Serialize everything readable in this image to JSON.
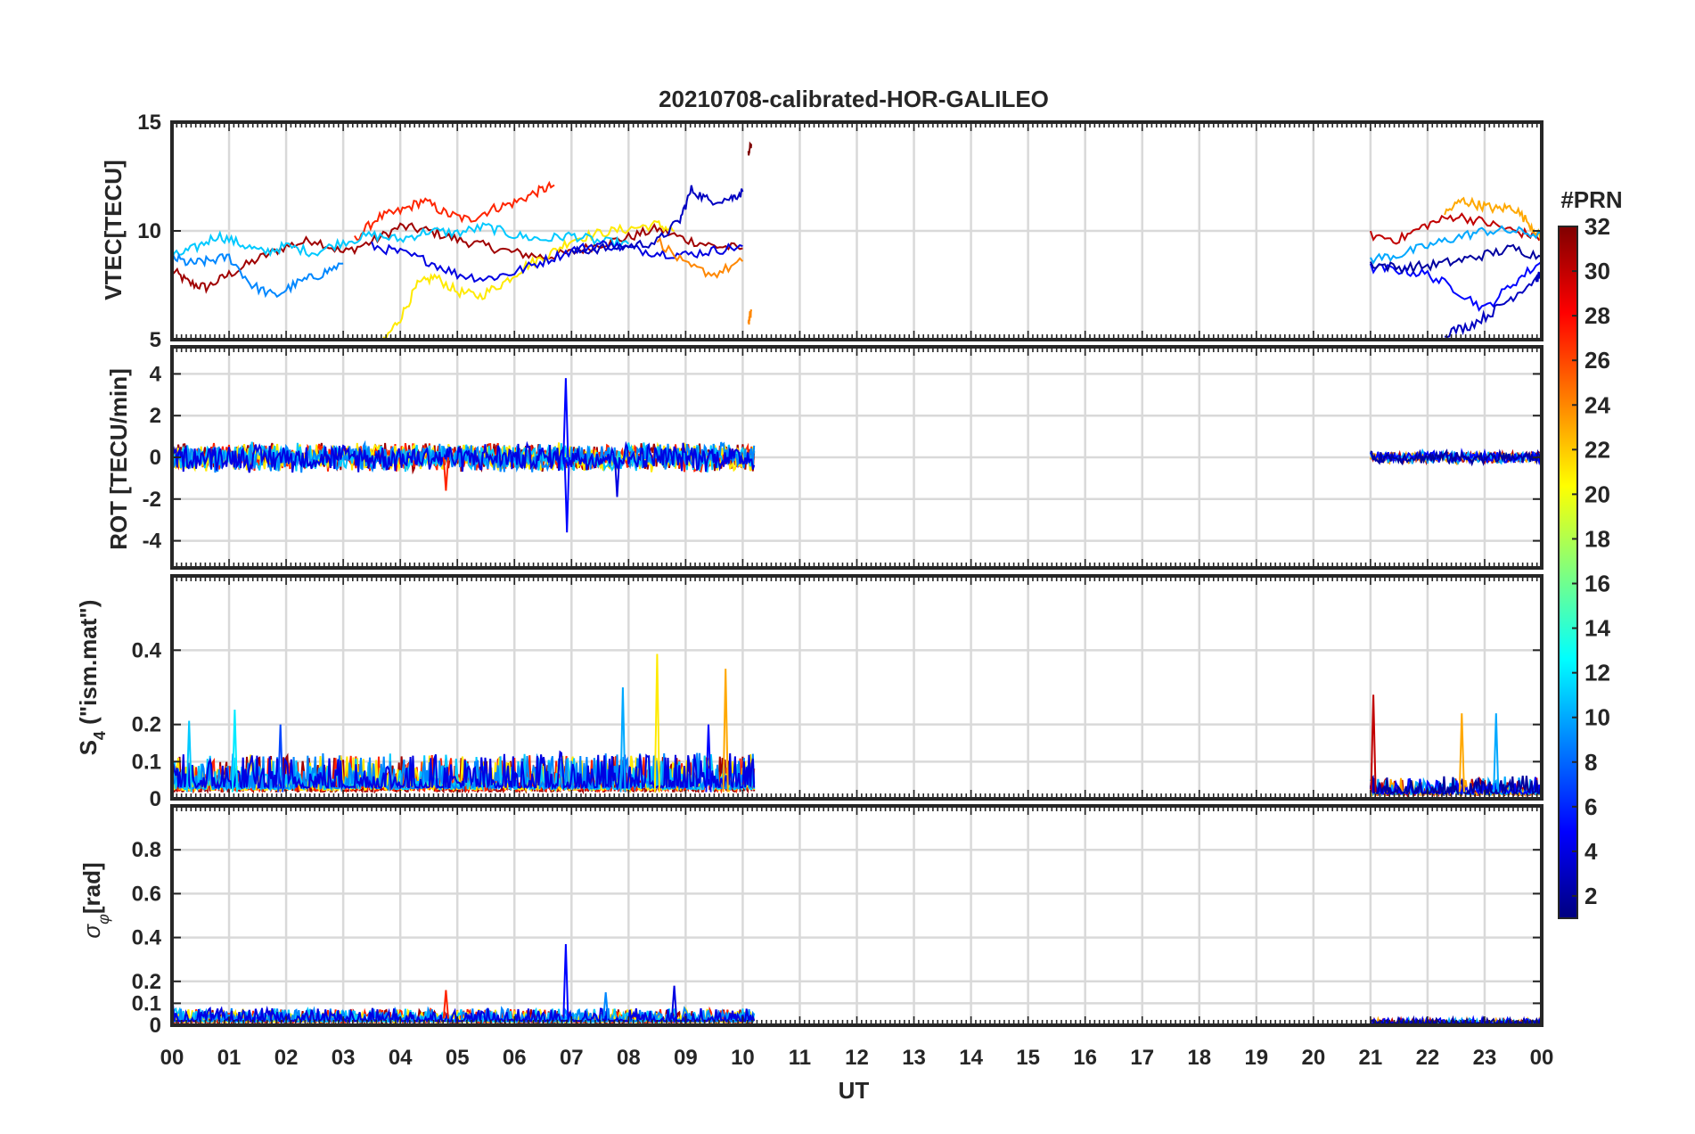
{
  "figure": {
    "title": "20210708-calibrated-HOR-GALILEO",
    "xlabel": "UT",
    "x_ticks": [
      "00",
      "01",
      "02",
      "03",
      "04",
      "05",
      "06",
      "07",
      "08",
      "09",
      "10",
      "11",
      "12",
      "13",
      "14",
      "15",
      "16",
      "17",
      "18",
      "19",
      "20",
      "21",
      "22",
      "23",
      "00"
    ]
  },
  "colorbar": {
    "title": "#PRN",
    "ticks": [
      "32",
      "30",
      "28",
      "26",
      "24",
      "22",
      "20",
      "18",
      "16",
      "14",
      "12",
      "10",
      "8",
      "6",
      "4",
      "2"
    ],
    "range": [
      1,
      32
    ],
    "colormap": "jet",
    "stops": [
      "#00007f",
      "#0000ff",
      "#007fff",
      "#00ffff",
      "#7fff7f",
      "#ffff00",
      "#ff7f00",
      "#ff0000",
      "#7f0000"
    ]
  },
  "chart_data": [
    {
      "type": "line",
      "panel": "VTEC",
      "ylabel": "VTEC[TECU]",
      "ylim": [
        5,
        15
      ],
      "y_ticks": [
        "15",
        "10",
        "5"
      ],
      "y_tick_values": [
        15,
        10,
        5
      ],
      "xlim": [
        0,
        24
      ],
      "grid": true,
      "series": [
        {
          "prn": 31,
          "x": [
            0,
            0.3,
            0.6,
            1.0,
            1.5,
            2.0,
            2.5,
            3.0,
            3.5,
            4.0,
            4.5,
            5.0,
            5.5,
            6.0,
            6.5,
            7.0,
            7.5,
            8.0,
            8.5,
            9.0,
            9.5,
            10.0
          ],
          "y": [
            8.2,
            7.6,
            7.4,
            8.0,
            8.7,
            9.3,
            9.6,
            9.0,
            9.5,
            10.2,
            10.0,
            9.6,
            9.3,
            9.0,
            8.8,
            9.0,
            9.4,
            9.7,
            10.1,
            9.6,
            9.3,
            9.2
          ]
        },
        {
          "prn": 27,
          "x": [
            3.2,
            3.6,
            4.0,
            4.4,
            4.8,
            5.2,
            5.6,
            6.0,
            6.4,
            6.7
          ],
          "y": [
            9.6,
            10.6,
            10.9,
            11.4,
            10.8,
            10.5,
            11.0,
            11.3,
            11.8,
            12.1
          ]
        },
        {
          "prn": 21,
          "x": [
            3.7,
            4.0,
            4.3,
            4.6,
            5.0,
            5.4,
            5.8,
            6.2,
            6.6,
            7.0,
            7.5,
            8.0,
            8.5,
            8.8
          ],
          "y": [
            4.9,
            6.0,
            7.5,
            7.9,
            7.2,
            7.0,
            7.6,
            8.4,
            8.9,
            9.6,
            9.9,
            10.1,
            10.3,
            10.0
          ]
        },
        {
          "prn": 11,
          "x": [
            0,
            0.4,
            0.8,
            1.2,
            1.6,
            2.0,
            2.5,
            3.0,
            3.5,
            4.0,
            4.5,
            5.0,
            5.5,
            6.0,
            6.5,
            7.0,
            7.5,
            8.0
          ],
          "y": [
            8.8,
            9.2,
            9.8,
            9.4,
            9.0,
            9.3,
            9.0,
            9.5,
            9.8,
            9.6,
            10.0,
            9.9,
            10.2,
            9.8,
            9.6,
            9.8,
            9.5,
            9.4
          ]
        },
        {
          "prn": 9,
          "x": [
            0,
            0.3,
            0.6,
            1.0,
            1.4,
            1.8,
            2.2,
            2.6,
            3.0
          ],
          "y": [
            8.8,
            8.5,
            8.6,
            8.8,
            7.5,
            7.0,
            7.6,
            8.0,
            8.5
          ]
        },
        {
          "prn": 4,
          "x": [
            3.5,
            4.0,
            4.5,
            5.0,
            5.5,
            6.0,
            6.5,
            7.0,
            7.5,
            8.0,
            8.5,
            9.0,
            9.5,
            10.0
          ],
          "y": [
            9.3,
            9.0,
            8.6,
            8.0,
            7.8,
            8.1,
            8.6,
            9.1,
            9.4,
            9.2,
            9.0,
            8.9,
            9.1,
            9.3
          ]
        },
        {
          "prn": 3,
          "x": [
            7.0,
            7.5,
            8.0,
            8.5,
            8.9,
            9.1,
            9.4,
            9.8,
            10.0
          ],
          "y": [
            9.0,
            9.2,
            9.3,
            9.5,
            10.5,
            11.9,
            11.4,
            11.5,
            11.8
          ]
        },
        {
          "prn": 24,
          "x": [
            8.5,
            9.0,
            9.5,
            10.0
          ],
          "y": [
            9.6,
            8.4,
            8.0,
            8.6
          ]
        },
        {
          "prn": 32,
          "x": [
            10.1,
            10.15
          ],
          "y": [
            13.5,
            14.0
          ]
        },
        {
          "prn": 24,
          "x": [
            10.1,
            10.15
          ],
          "y": [
            5.8,
            6.3
          ]
        },
        {
          "prn": 30,
          "x": [
            21.0,
            21.5,
            22.0,
            22.5,
            23.0,
            23.5,
            24.0
          ],
          "y": [
            9.8,
            9.6,
            10.3,
            10.7,
            10.4,
            10.0,
            9.7
          ]
        },
        {
          "prn": 23,
          "x": [
            22.3,
            22.6,
            22.9,
            23.2,
            23.5,
            23.8,
            24.0
          ],
          "y": [
            10.8,
            11.4,
            11.2,
            11.0,
            11.1,
            10.3,
            9.6
          ]
        },
        {
          "prn": 10,
          "x": [
            21.0,
            21.5,
            22.0,
            22.5,
            23.0,
            23.5,
            24.0
          ],
          "y": [
            8.7,
            8.9,
            9.3,
            9.7,
            10.0,
            10.0,
            9.8
          ]
        },
        {
          "prn": 5,
          "x": [
            21.0,
            21.5,
            22.0,
            22.5,
            23.0,
            23.5,
            24.0
          ],
          "y": [
            8.3,
            8.2,
            8.0,
            7.3,
            6.4,
            7.6,
            8.6
          ]
        },
        {
          "prn": 2,
          "x": [
            21.0,
            21.5,
            22.0,
            22.5,
            23.0,
            23.5,
            24.0
          ],
          "y": [
            8.5,
            8.3,
            8.4,
            8.6,
            8.9,
            9.2,
            8.8
          ]
        },
        {
          "prn": 3,
          "x": [
            22.3,
            22.7,
            23.1,
            23.5,
            23.9,
            24.0
          ],
          "y": [
            5.3,
            5.6,
            6.2,
            7.0,
            7.8,
            8.0
          ]
        }
      ]
    },
    {
      "type": "line",
      "panel": "ROT",
      "ylabel": "ROT [TECU/min]",
      "ylim": [
        -5.3,
        5.3
      ],
      "y_ticks": [
        "4",
        "2",
        "0",
        "-2",
        "-4"
      ],
      "y_tick_values": [
        4,
        2,
        0,
        -2,
        -4
      ],
      "xlim": [
        0,
        24
      ],
      "grid": true,
      "noise_segments": [
        {
          "x_start": 0,
          "x_end": 10.2,
          "amplitude": 0.7,
          "prns": [
            31,
            27,
            21,
            11,
            9,
            4
          ]
        },
        {
          "x_start": 21,
          "x_end": 24,
          "amplitude": 0.3,
          "prns": [
            30,
            23,
            10,
            5,
            2
          ]
        }
      ],
      "spikes": [
        {
          "prn": 5,
          "x": 6.9,
          "y": 3.8
        },
        {
          "prn": 5,
          "x": 6.92,
          "y": -3.6
        },
        {
          "prn": 4,
          "x": 7.8,
          "y": -1.9
        },
        {
          "prn": 27,
          "x": 4.8,
          "y": -1.6
        }
      ]
    },
    {
      "type": "line",
      "panel": "S4",
      "ylabel": "S4 (\"ism.mat\")",
      "ylim": [
        0,
        0.6
      ],
      "y_ticks": [
        "0.4",
        "0.2",
        "0.1",
        "0"
      ],
      "y_tick_values": [
        0.4,
        0.2,
        0.1,
        0
      ],
      "xlim": [
        0,
        24
      ],
      "grid": true,
      "noise_segments": [
        {
          "x_start": 0,
          "x_end": 10.2,
          "amplitude": 0.08,
          "prns": [
            31,
            27,
            21,
            11,
            9,
            4
          ]
        },
        {
          "x_start": 21,
          "x_end": 24,
          "amplitude": 0.04,
          "prns": [
            30,
            23,
            10,
            5,
            2
          ]
        }
      ],
      "spikes": [
        {
          "prn": 11,
          "x": 0.3,
          "y": 0.21
        },
        {
          "prn": 12,
          "x": 1.1,
          "y": 0.24
        },
        {
          "prn": 7,
          "x": 1.9,
          "y": 0.2
        },
        {
          "prn": 10,
          "x": 7.9,
          "y": 0.3
        },
        {
          "prn": 21,
          "x": 8.5,
          "y": 0.39
        },
        {
          "prn": 23,
          "x": 9.7,
          "y": 0.35
        },
        {
          "prn": 5,
          "x": 9.4,
          "y": 0.2
        },
        {
          "prn": 30,
          "x": 21.05,
          "y": 0.28
        },
        {
          "prn": 23,
          "x": 22.6,
          "y": 0.23
        },
        {
          "prn": 10,
          "x": 23.2,
          "y": 0.23
        }
      ]
    },
    {
      "type": "line",
      "panel": "sigma_phi",
      "ylabel": "σφ[rad]",
      "ylim": [
        0,
        1
      ],
      "y_ticks": [
        "0.8",
        "0.6",
        "0.4",
        "0.2",
        "0.1",
        "0"
      ],
      "y_tick_values": [
        0.8,
        0.6,
        0.4,
        0.2,
        0.1,
        0
      ],
      "xlim": [
        0,
        24
      ],
      "grid": true,
      "noise_segments": [
        {
          "x_start": 0,
          "x_end": 10.2,
          "amplitude": 0.05,
          "prns": [
            31,
            27,
            21,
            11,
            9,
            4
          ]
        },
        {
          "x_start": 21,
          "x_end": 24,
          "amplitude": 0.02,
          "prns": [
            30,
            23,
            10,
            5,
            2
          ]
        }
      ],
      "spikes": [
        {
          "prn": 5,
          "x": 6.9,
          "y": 0.37
        },
        {
          "prn": 9,
          "x": 7.6,
          "y": 0.15
        },
        {
          "prn": 4,
          "x": 8.8,
          "y": 0.18
        },
        {
          "prn": 27,
          "x": 4.8,
          "y": 0.16
        }
      ]
    }
  ]
}
